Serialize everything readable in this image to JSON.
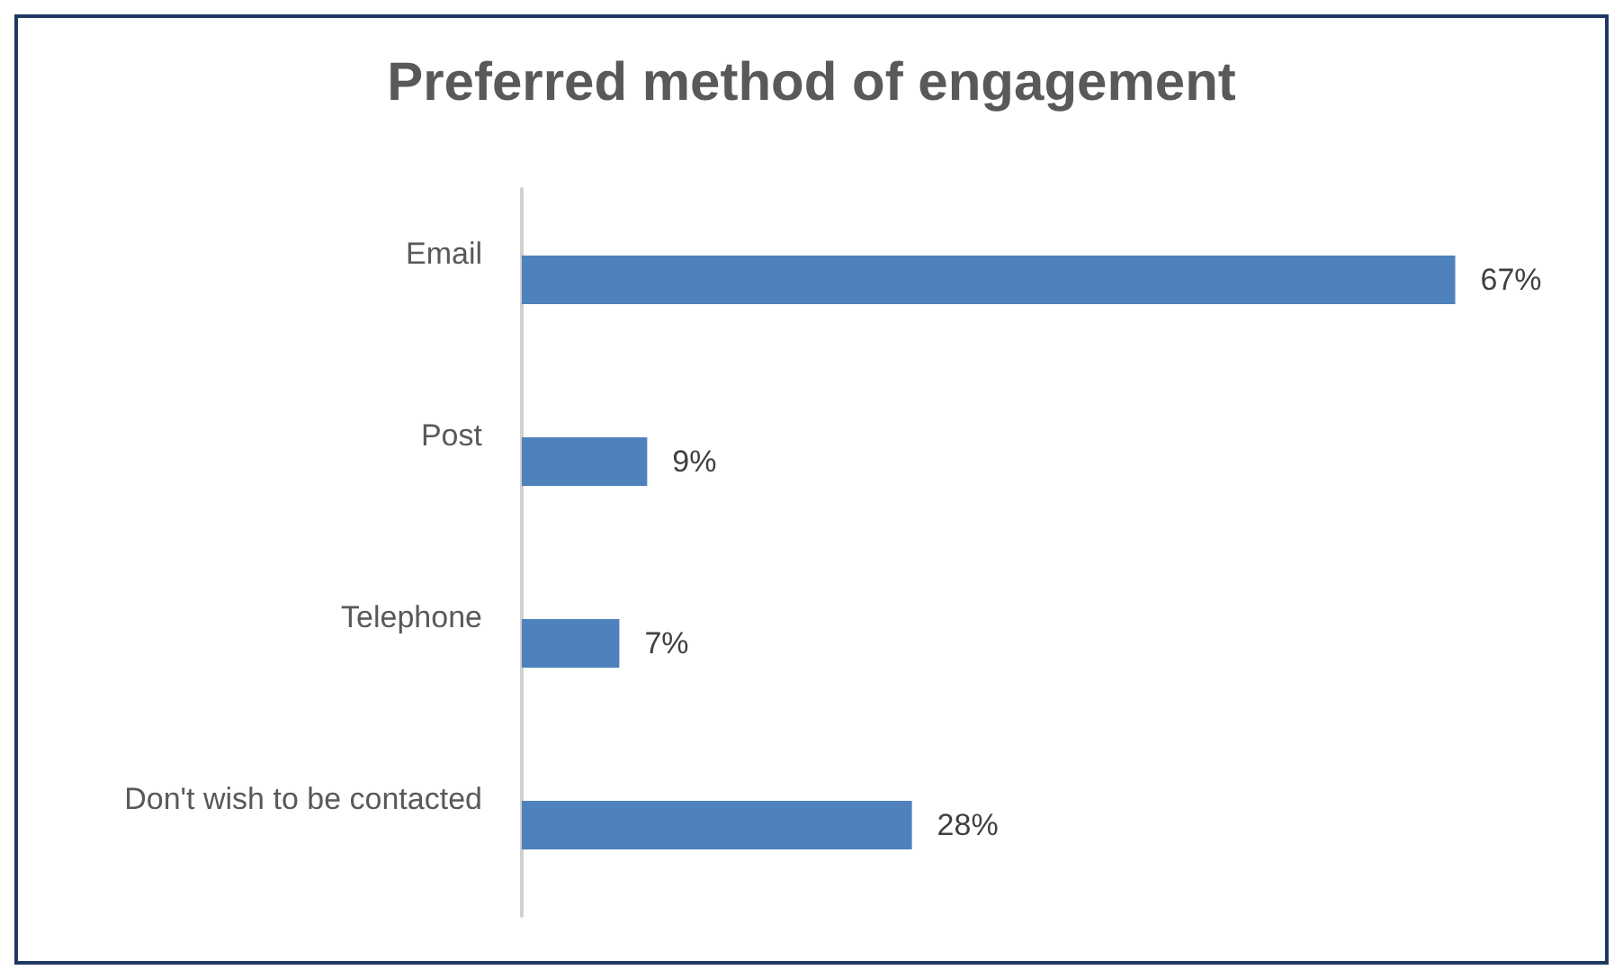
{
  "chart_data": {
    "type": "bar",
    "orientation": "horizontal",
    "title": "Preferred method of engagement",
    "categories": [
      "Email",
      "Post",
      "Telephone",
      "Don't wish to be contacted"
    ],
    "values": [
      67,
      9,
      7,
      28
    ],
    "value_labels": [
      "67%",
      "9%",
      "7%",
      "28%"
    ],
    "color": "#4f81bd"
  }
}
